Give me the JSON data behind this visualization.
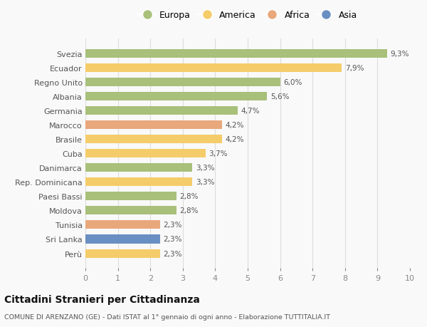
{
  "categories": [
    "Svezia",
    "Ecuador",
    "Regno Unito",
    "Albania",
    "Germania",
    "Marocco",
    "Brasile",
    "Cuba",
    "Danimarca",
    "Rep. Dominicana",
    "Paesi Bassi",
    "Moldova",
    "Tunisia",
    "Sri Lanka",
    "Perù"
  ],
  "values": [
    9.3,
    7.9,
    6.0,
    5.6,
    4.7,
    4.2,
    4.2,
    3.7,
    3.3,
    3.3,
    2.8,
    2.8,
    2.3,
    2.3,
    2.3
  ],
  "labels": [
    "9,3%",
    "7,9%",
    "6,0%",
    "5,6%",
    "4,7%",
    "4,2%",
    "4,2%",
    "3,7%",
    "3,3%",
    "3,3%",
    "2,8%",
    "2,8%",
    "2,3%",
    "2,3%",
    "2,3%"
  ],
  "colors": [
    "#a8c07a",
    "#f5cc6a",
    "#a8c07a",
    "#a8c07a",
    "#a8c07a",
    "#e8a87c",
    "#f5cc6a",
    "#f5cc6a",
    "#a8c07a",
    "#f5cc6a",
    "#a8c07a",
    "#a8c07a",
    "#e8a87c",
    "#6a8fc2",
    "#f5cc6a"
  ],
  "legend": {
    "Europa": "#a8c07a",
    "America": "#f5cc6a",
    "Africa": "#e8a87c",
    "Asia": "#6a8fc2"
  },
  "xlim": [
    0,
    10
  ],
  "xticks": [
    0,
    1,
    2,
    3,
    4,
    5,
    6,
    7,
    8,
    9,
    10
  ],
  "title": "Cittadini Stranieri per Cittadinanza",
  "subtitle": "COMUNE DI ARENZANO (GE) - Dati ISTAT al 1° gennaio di ogni anno - Elaborazione TUTTITALIA.IT",
  "bg_color": "#f9f9f9",
  "bar_height": 0.6,
  "grid_color": "#dddddd"
}
